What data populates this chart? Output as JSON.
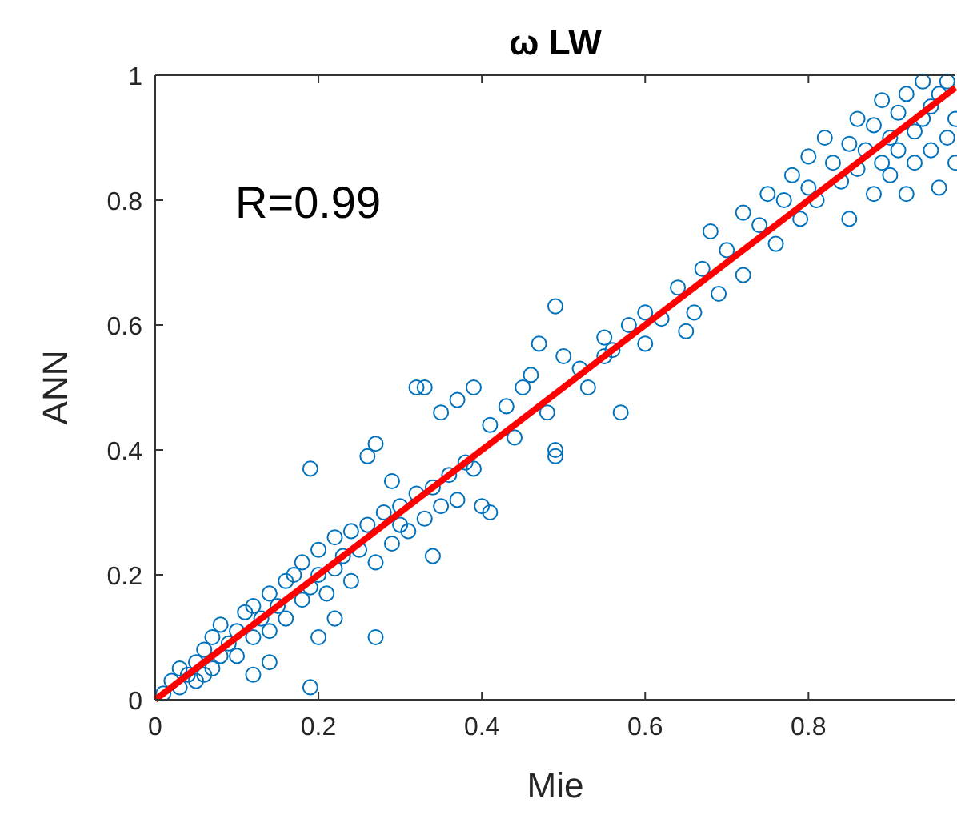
{
  "chart_data": {
    "type": "scatter",
    "title": "ω LW",
    "xlabel": "Mie",
    "ylabel": "ANN",
    "annotations": [
      "R=0.99"
    ],
    "xlim": [
      0,
      0.98
    ],
    "ylim": [
      0,
      1
    ],
    "xticks": [
      0,
      0.2,
      0.4,
      0.6,
      0.8
    ],
    "yticks": [
      0,
      0.2,
      0.4,
      0.6,
      0.8,
      1
    ],
    "grid": false,
    "series": [
      {
        "color": "#0072bd",
        "marker": "circle",
        "x": [
          0.01,
          0.02,
          0.03,
          0.03,
          0.04,
          0.05,
          0.05,
          0.06,
          0.07,
          0.07,
          0.08,
          0.08,
          0.09,
          0.1,
          0.1,
          0.11,
          0.12,
          0.12,
          0.13,
          0.14,
          0.14,
          0.15,
          0.16,
          0.16,
          0.17,
          0.18,
          0.18,
          0.19,
          0.2,
          0.2,
          0.21,
          0.22,
          0.22,
          0.23,
          0.24,
          0.24,
          0.25,
          0.26,
          0.27,
          0.28,
          0.29,
          0.3,
          0.31,
          0.32,
          0.33,
          0.34,
          0.35,
          0.36,
          0.37,
          0.38,
          0.19,
          0.06,
          0.19,
          0.2,
          0.27,
          0.32,
          0.33,
          0.35,
          0.37,
          0.39,
          0.27,
          0.26,
          0.29,
          0.34,
          0.4,
          0.41,
          0.45,
          0.48,
          0.49,
          0.49,
          0.41,
          0.43,
          0.46,
          0.47,
          0.49,
          0.5,
          0.52,
          0.53,
          0.55,
          0.56,
          0.58,
          0.6,
          0.6,
          0.62,
          0.64,
          0.65,
          0.66,
          0.67,
          0.68,
          0.69,
          0.7,
          0.72,
          0.72,
          0.74,
          0.75,
          0.76,
          0.77,
          0.78,
          0.79,
          0.8,
          0.8,
          0.81,
          0.82,
          0.83,
          0.84,
          0.85,
          0.85,
          0.86,
          0.86,
          0.87,
          0.88,
          0.88,
          0.89,
          0.89,
          0.9,
          0.9,
          0.91,
          0.91,
          0.92,
          0.92,
          0.93,
          0.93,
          0.94,
          0.94,
          0.95,
          0.95,
          0.96,
          0.96,
          0.97,
          0.97,
          0.98,
          0.98,
          0.55,
          0.57,
          0.44,
          0.39,
          0.3,
          0.14,
          0.12,
          0.22
        ],
        "values": [
          0.01,
          0.03,
          0.02,
          0.05,
          0.04,
          0.06,
          0.03,
          0.08,
          0.05,
          0.1,
          0.07,
          0.12,
          0.09,
          0.11,
          0.07,
          0.14,
          0.1,
          0.15,
          0.13,
          0.17,
          0.11,
          0.15,
          0.19,
          0.13,
          0.2,
          0.16,
          0.22,
          0.18,
          0.24,
          0.2,
          0.17,
          0.26,
          0.21,
          0.23,
          0.27,
          0.19,
          0.24,
          0.28,
          0.22,
          0.3,
          0.25,
          0.31,
          0.27,
          0.33,
          0.29,
          0.34,
          0.31,
          0.36,
          0.32,
          0.38,
          0.02,
          0.04,
          0.37,
          0.1,
          0.1,
          0.5,
          0.5,
          0.46,
          0.48,
          0.5,
          0.41,
          0.39,
          0.35,
          0.23,
          0.31,
          0.3,
          0.5,
          0.46,
          0.4,
          0.39,
          0.44,
          0.47,
          0.52,
          0.57,
          0.63,
          0.55,
          0.53,
          0.5,
          0.58,
          0.56,
          0.6,
          0.62,
          0.57,
          0.61,
          0.66,
          0.59,
          0.62,
          0.69,
          0.75,
          0.65,
          0.72,
          0.78,
          0.68,
          0.76,
          0.81,
          0.73,
          0.8,
          0.84,
          0.77,
          0.87,
          0.82,
          0.8,
          0.9,
          0.86,
          0.83,
          0.89,
          0.77,
          0.93,
          0.85,
          0.88,
          0.81,
          0.92,
          0.96,
          0.86,
          0.9,
          0.84,
          0.94,
          0.88,
          0.97,
          0.81,
          0.91,
          0.86,
          0.99,
          0.93,
          0.88,
          0.95,
          0.97,
          0.82,
          0.9,
          0.99,
          0.93,
          0.86,
          0.55,
          0.46,
          0.42,
          0.37,
          0.28,
          0.06,
          0.04,
          0.13
        ]
      },
      {
        "type": "line",
        "marker": "none",
        "color": "#ff0000",
        "x": [
          0,
          0.98
        ],
        "values": [
          0,
          0.98
        ]
      }
    ]
  }
}
